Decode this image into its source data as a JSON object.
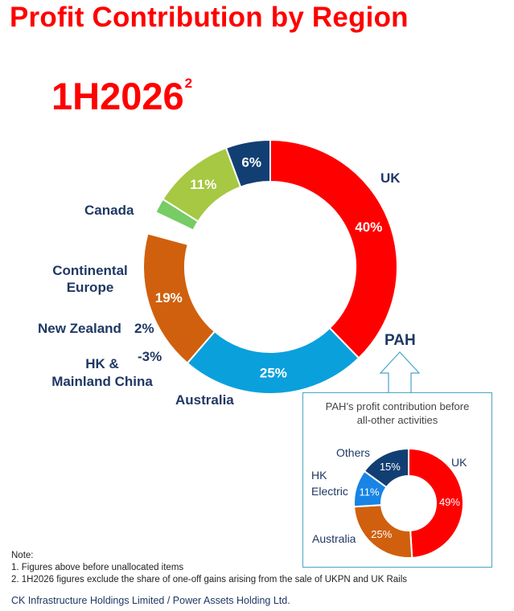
{
  "page": {
    "title": "Profit Contribution by Region",
    "period": "1H2026",
    "period_sup": "2"
  },
  "chart_data": [
    {
      "type": "pie",
      "variant": "donut",
      "title": "Profit Contribution by Region",
      "subtitle": "1H2026",
      "slices": [
        {
          "label": "UK",
          "value": 40,
          "display": "40%",
          "color": "#ff0000"
        },
        {
          "label": "PAH",
          "value": 25,
          "display": "25%",
          "color": "#0aa0dc"
        },
        {
          "label": "Australia",
          "value": 19,
          "display": "19%",
          "color": "#d0600e"
        },
        {
          "label": "HK & Mainland China",
          "value": -3,
          "display": "-3%",
          "color": "#ffffff"
        },
        {
          "label": "New Zealand",
          "value": 2,
          "display": "2%",
          "color": "#77cc66"
        },
        {
          "label": "Continental Europe",
          "value": 11,
          "display": "11%",
          "color": "#a6c842"
        },
        {
          "label": "Canada",
          "value": 6,
          "display": "6%",
          "color": "#123f73"
        }
      ],
      "legend": "labels beside slices"
    },
    {
      "type": "pie",
      "variant": "donut",
      "title": "PAH’s profit contribution before all-other activities",
      "slices": [
        {
          "label": "UK",
          "value": 49,
          "display": "49%",
          "color": "#ff0000"
        },
        {
          "label": "Australia",
          "value": 25,
          "display": "25%",
          "color": "#d0600e"
        },
        {
          "label": "HK Electric",
          "value": 11,
          "display": "11%",
          "color": "#1784e6"
        },
        {
          "label": "Others",
          "value": 15,
          "display": "15%",
          "color": "#123f73"
        }
      ],
      "legend": "labels beside slices"
    }
  ],
  "inset": {
    "title_line1": "PAH’s profit contribution before",
    "title_line2": "all-other activities",
    "labels": {
      "others": "Others",
      "hk": "HK",
      "electric": "Electric",
      "uk": "UK",
      "australia": "Australia"
    }
  },
  "main_labels": {
    "canada": "Canada",
    "continental": "Continental",
    "europe": "Europe",
    "new_zealand": "New Zealand",
    "hk_line1": "HK &",
    "hk_line2": "Mainland China",
    "australia": "Australia",
    "uk": "UK",
    "pah": "PAH"
  },
  "notes": {
    "heading": "Note:",
    "line1": "1. Figures above before unallocated items",
    "line2": "2. 1H2026 figures exclude the share of one-off gains arising from the sale of UKPN and UK Rails"
  },
  "footer": "CK Infrastructure Holdings Limited / Power Assets Holding Ltd."
}
